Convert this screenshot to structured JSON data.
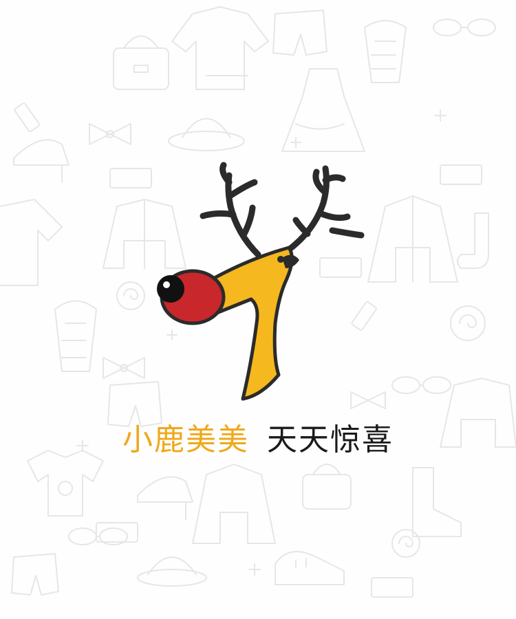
{
  "splash": {
    "brand_text": "小鹿美美",
    "tagline_text": "天天惊喜",
    "colors": {
      "brand": "#f0a81b",
      "tagline": "#1a1a1a",
      "nose": "#c8272b",
      "antler": "#2b2b2b",
      "background_doodle": "#e6e6e6"
    },
    "icons": {
      "logo": "deer-logo-icon",
      "background": "fashion-doodle-pattern"
    }
  }
}
